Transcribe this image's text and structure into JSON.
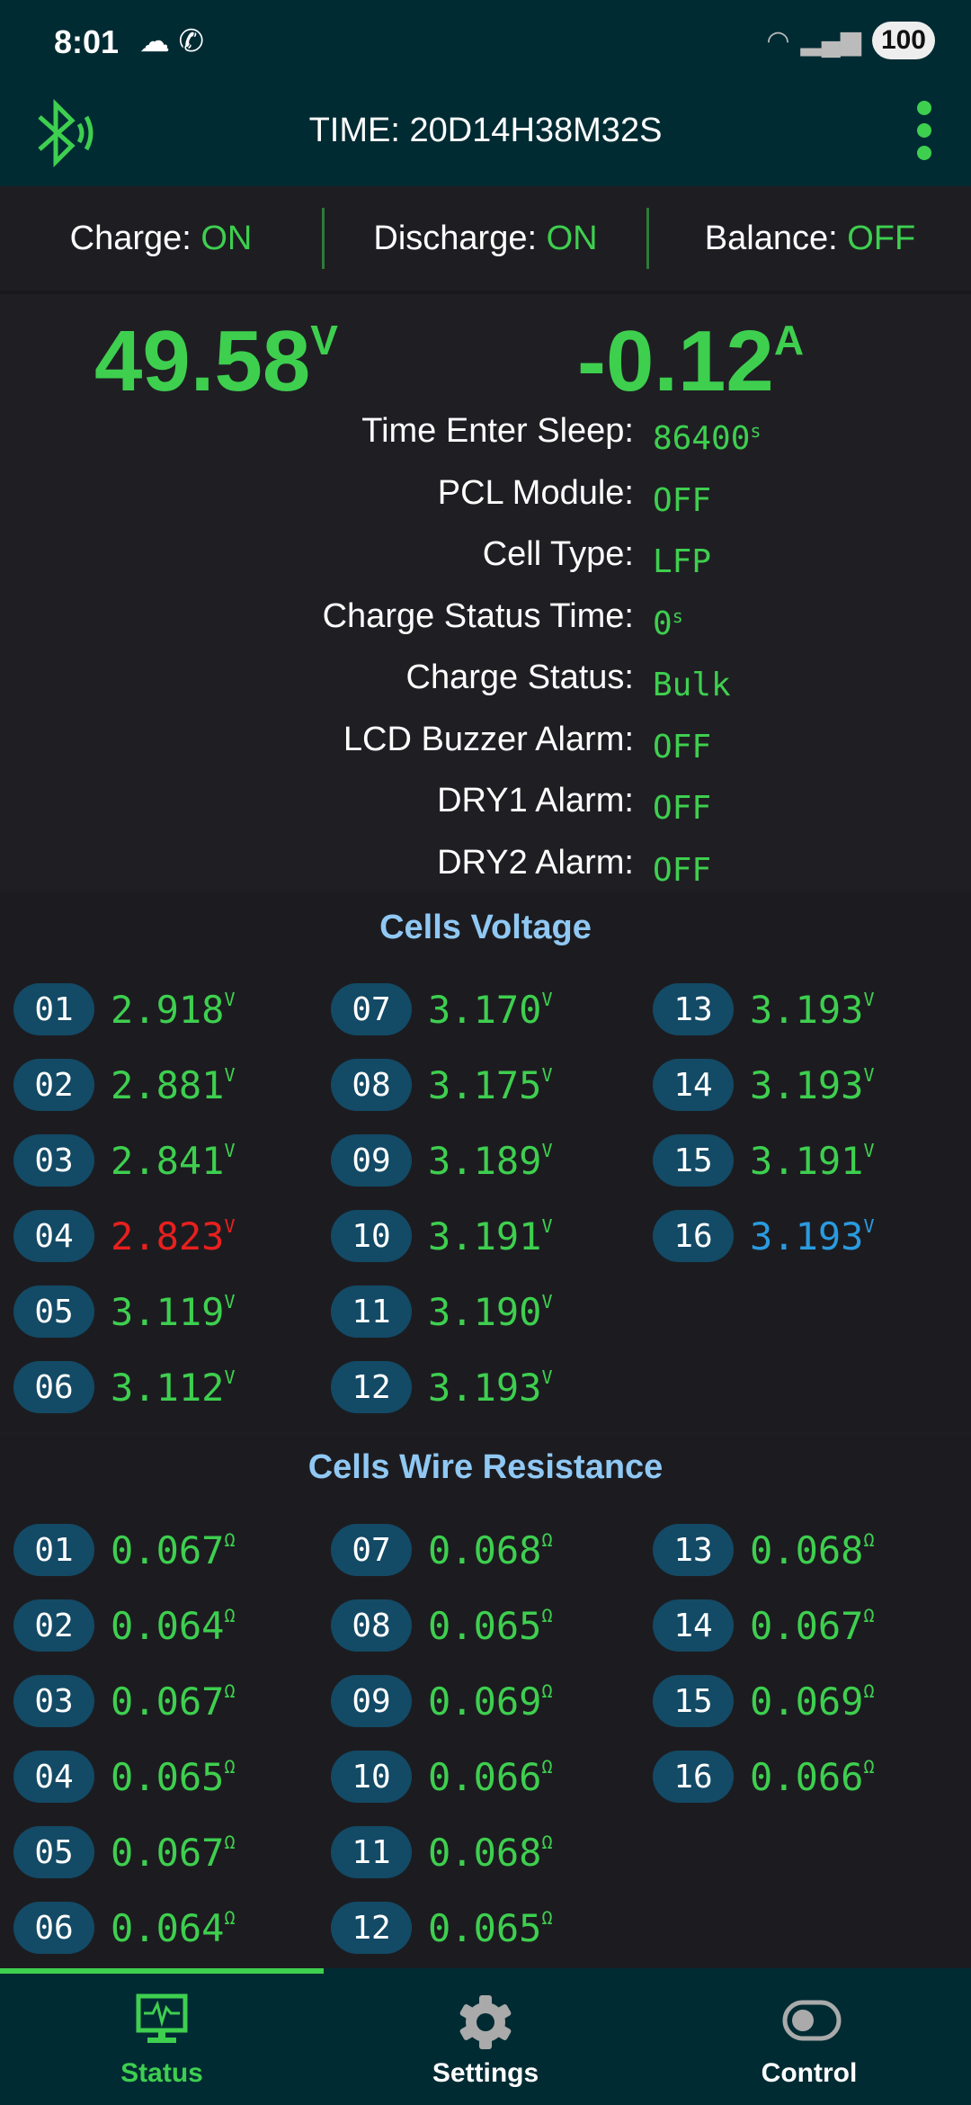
{
  "status_bar": {
    "time": "8:01",
    "battery": "100"
  },
  "header": {
    "title": "TIME: 20D14H38M32S"
  },
  "switches": [
    {
      "label": "Charge: ",
      "value": "ON"
    },
    {
      "label": "Discharge: ",
      "value": "ON"
    },
    {
      "label": "Balance: ",
      "value": "OFF"
    }
  ],
  "summary": {
    "voltage": "49.58",
    "voltage_unit": "V",
    "current": "-0.12",
    "current_unit": "A"
  },
  "info": [
    {
      "label": "Time Enter Sleep:",
      "value": "86400",
      "unit": "s"
    },
    {
      "label": "PCL Module:",
      "value": "OFF",
      "unit": ""
    },
    {
      "label": "Cell Type:",
      "value": "LFP",
      "unit": ""
    },
    {
      "label": "Charge Status Time:",
      "value": "0",
      "unit": "s"
    },
    {
      "label": "Charge Status:",
      "value": "Bulk",
      "unit": ""
    },
    {
      "label": "LCD Buzzer Alarm:",
      "value": "OFF",
      "unit": ""
    },
    {
      "label": "DRY1 Alarm:",
      "value": "OFF",
      "unit": ""
    },
    {
      "label": "DRY2 Alarm:",
      "value": "OFF",
      "unit": ""
    }
  ],
  "colors": {
    "normal": "#3ecf4f",
    "min": "#e8201e",
    "max": "#2a9be0",
    "badge": "#134a66",
    "header": "#002b33"
  },
  "cells_voltage": {
    "title": "Cells Voltage",
    "unit": "V",
    "min_cell": "04",
    "max_cell": "16",
    "cells": [
      [
        "01",
        "2.918"
      ],
      [
        "02",
        "2.881"
      ],
      [
        "03",
        "2.841"
      ],
      [
        "04",
        "2.823"
      ],
      [
        "05",
        "3.119"
      ],
      [
        "06",
        "3.112"
      ],
      [
        "07",
        "3.170"
      ],
      [
        "08",
        "3.175"
      ],
      [
        "09",
        "3.189"
      ],
      [
        "10",
        "3.191"
      ],
      [
        "11",
        "3.190"
      ],
      [
        "12",
        "3.193"
      ],
      [
        "13",
        "3.193"
      ],
      [
        "14",
        "3.193"
      ],
      [
        "15",
        "3.191"
      ],
      [
        "16",
        "3.193"
      ]
    ]
  },
  "cells_resistance": {
    "title": "Cells Wire Resistance",
    "unit": "Ω",
    "cells": [
      [
        "01",
        "0.067"
      ],
      [
        "02",
        "0.064"
      ],
      [
        "03",
        "0.067"
      ],
      [
        "04",
        "0.065"
      ],
      [
        "05",
        "0.067"
      ],
      [
        "06",
        "0.064"
      ],
      [
        "07",
        "0.068"
      ],
      [
        "08",
        "0.065"
      ],
      [
        "09",
        "0.069"
      ],
      [
        "10",
        "0.066"
      ],
      [
        "11",
        "0.068"
      ],
      [
        "12",
        "0.065"
      ],
      [
        "13",
        "0.068"
      ],
      [
        "14",
        "0.067"
      ],
      [
        "15",
        "0.069"
      ],
      [
        "16",
        "0.066"
      ]
    ]
  },
  "nav": {
    "active": "Status",
    "tabs": [
      {
        "label": "Status",
        "icon": "monitor-heartbeat-icon"
      },
      {
        "label": "Settings",
        "icon": "gear-icon"
      },
      {
        "label": "Control",
        "icon": "toggle-icon"
      }
    ]
  }
}
